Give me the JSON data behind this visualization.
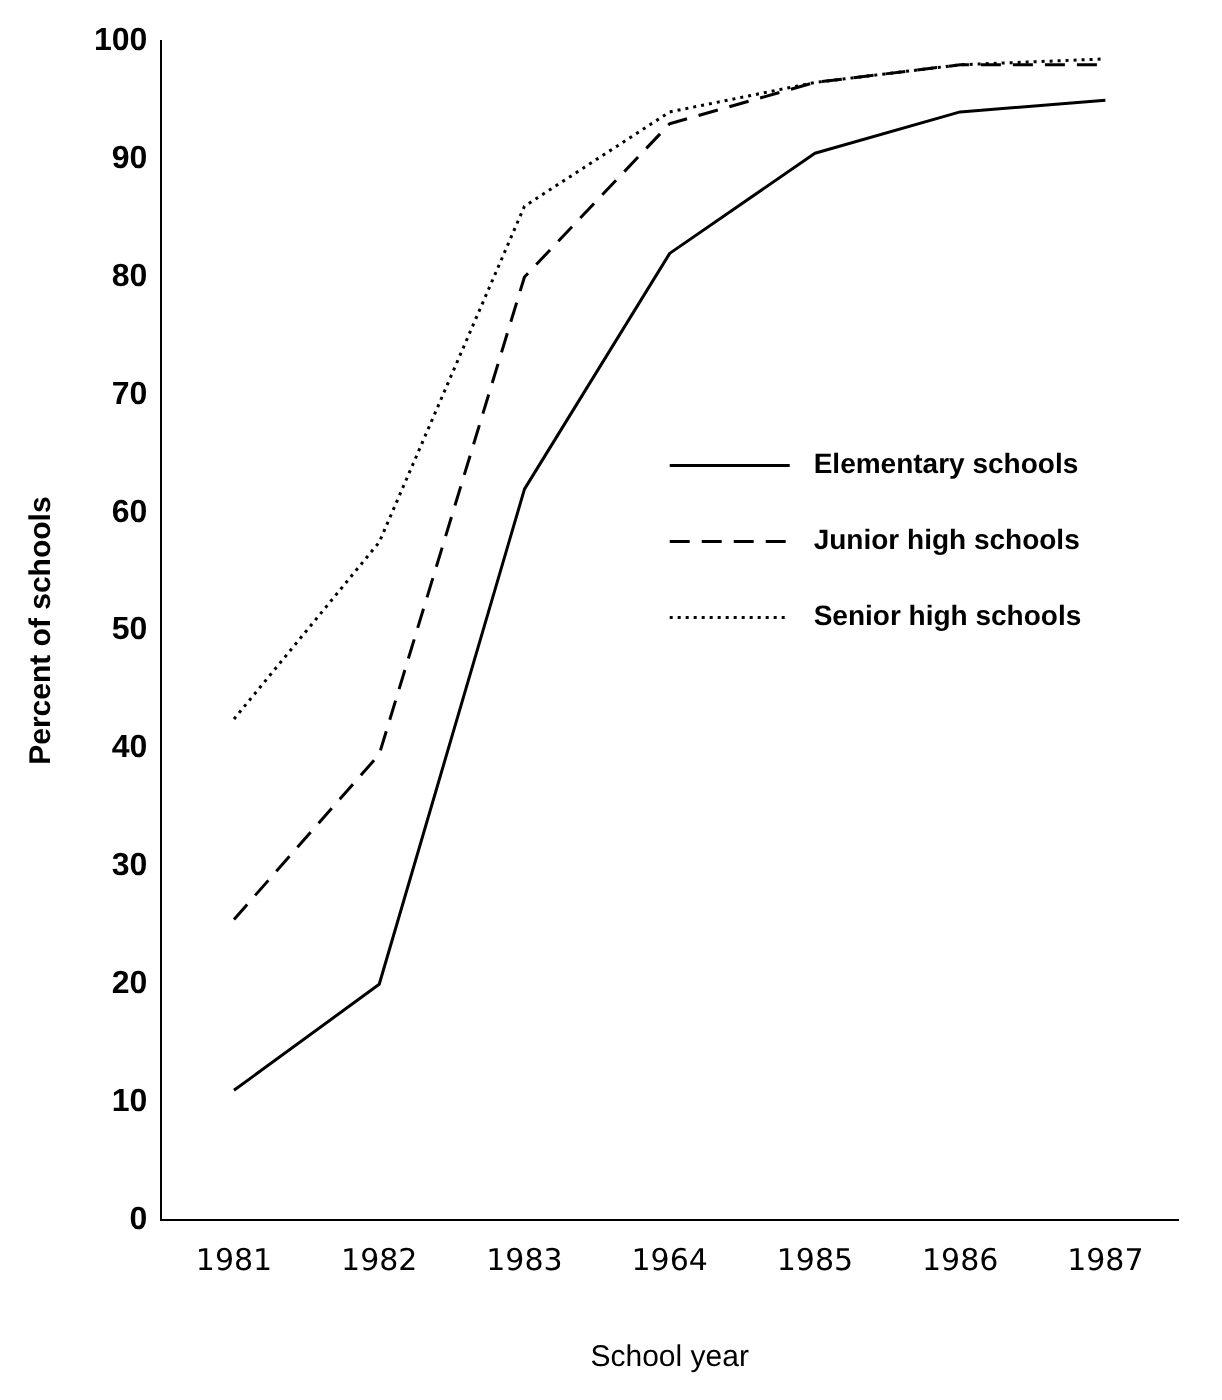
{
  "chart_data": {
    "type": "line",
    "xlabel": "School year",
    "ylabel": "Percent of schools",
    "categories": [
      "1981",
      "1982",
      "1983",
      "1964",
      "1985",
      "1986",
      "1987"
    ],
    "series": [
      {
        "name": "Elementary schools",
        "color": "#000000",
        "line_style": "solid",
        "values": [
          11,
          20,
          62,
          82,
          90.5,
          94,
          95
        ]
      },
      {
        "name": "Junior high schools",
        "color": "#000000",
        "line_style": "dashed",
        "values": [
          25.5,
          39.5,
          80,
          93,
          96.5,
          98,
          98
        ]
      },
      {
        "name": "Senior high schools",
        "color": "#000000",
        "line_style": "dotted",
        "values": [
          42.5,
          57.5,
          86,
          94,
          96.5,
          98,
          98.5
        ]
      }
    ],
    "ylim": [
      0,
      100
    ],
    "yticks": [
      0,
      10,
      20,
      30,
      40,
      50,
      60,
      70,
      80,
      90,
      100
    ],
    "grid": false,
    "legend": "right",
    "marker": "none"
  }
}
